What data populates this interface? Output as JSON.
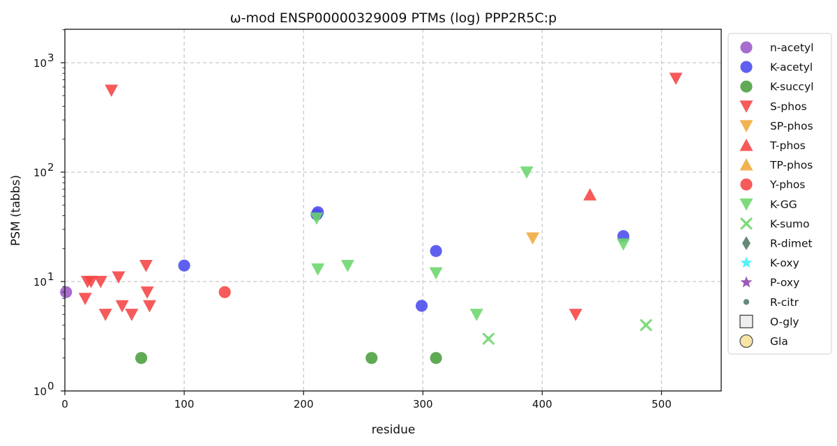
{
  "chart_data": {
    "type": "scatter",
    "title": "ω-mod ENSP00000329009 PTMs (log) PPP2R5C:p",
    "xlabel": "residue",
    "ylabel": "PSM (tabbs)",
    "xlim": [
      0,
      550
    ],
    "ylim": [
      1,
      2000
    ],
    "yscale": "log",
    "grid": true,
    "legend_position": "outside-right",
    "x_ticks": [
      "0",
      "100",
      "200",
      "300",
      "400",
      "500"
    ],
    "y_ticks": [
      {
        "base": "10",
        "exp": "0"
      },
      {
        "base": "10",
        "exp": "1"
      },
      {
        "base": "10",
        "exp": "2"
      },
      {
        "base": "10",
        "exp": "3"
      }
    ],
    "series": [
      {
        "name": "n-acetyl",
        "marker": "circle",
        "color": "#9b59c6",
        "points": [
          [
            1,
            8
          ]
        ]
      },
      {
        "name": "K-acetyl",
        "marker": "circle",
        "color": "#4a4aee",
        "points": [
          [
            100,
            14
          ],
          [
            212,
            43
          ],
          [
            211,
            41
          ],
          [
            299,
            6
          ],
          [
            311,
            19
          ],
          [
            468,
            26
          ]
        ]
      },
      {
        "name": "K-succyl",
        "marker": "circle",
        "color": "#4a9e3f",
        "points": [
          [
            64,
            2
          ],
          [
            257,
            2
          ],
          [
            311,
            2
          ]
        ]
      },
      {
        "name": "S-phos",
        "marker": "triangle-down",
        "color": "#f54343",
        "points": [
          [
            39,
            560
          ],
          [
            512,
            720
          ],
          [
            17,
            7
          ],
          [
            19,
            10
          ],
          [
            22,
            10
          ],
          [
            30,
            10
          ],
          [
            34,
            5
          ],
          [
            45,
            11
          ],
          [
            48,
            6
          ],
          [
            56,
            5
          ],
          [
            68,
            14
          ],
          [
            69,
            8
          ],
          [
            71,
            6
          ],
          [
            428,
            5
          ]
        ]
      },
      {
        "name": "SP-phos",
        "marker": "triangle-down",
        "color": "#f0a93a",
        "points": [
          [
            392,
            25
          ]
        ]
      },
      {
        "name": "T-phos",
        "marker": "triangle-up",
        "color": "#f54343",
        "points": [
          [
            440,
            62
          ]
        ]
      },
      {
        "name": "TP-phos",
        "marker": "triangle-up",
        "color": "#f0a93a",
        "points": []
      },
      {
        "name": "Y-phos",
        "marker": "circle",
        "color": "#f54343",
        "points": [
          [
            134,
            8
          ]
        ]
      },
      {
        "name": "K-GG",
        "marker": "triangle-down",
        "color": "#6bd66b",
        "points": [
          [
            211,
            38
          ],
          [
            212,
            13
          ],
          [
            237,
            14
          ],
          [
            311,
            12
          ],
          [
            345,
            5
          ],
          [
            387,
            100
          ],
          [
            468,
            22
          ]
        ]
      },
      {
        "name": "K-sumo",
        "marker": "x",
        "color": "#6bd66b",
        "points": [
          [
            355,
            3
          ],
          [
            487,
            4
          ]
        ]
      },
      {
        "name": "R-dimet",
        "marker": "diamond",
        "color": "#4e7a64",
        "points": []
      },
      {
        "name": "K-oxy",
        "marker": "star",
        "color": "#3ff0f0",
        "points": []
      },
      {
        "name": "P-oxy",
        "marker": "star",
        "color": "#8e44ad",
        "points": []
      },
      {
        "name": "R-citr",
        "marker": "small-circle",
        "color": "#4e7a64",
        "points": []
      },
      {
        "name": "O-gly",
        "marker": "square-open",
        "color": "#eeeeee",
        "points": []
      },
      {
        "name": "Gla",
        "marker": "circle-open",
        "color": "#f8e5a6",
        "points": []
      }
    ]
  }
}
